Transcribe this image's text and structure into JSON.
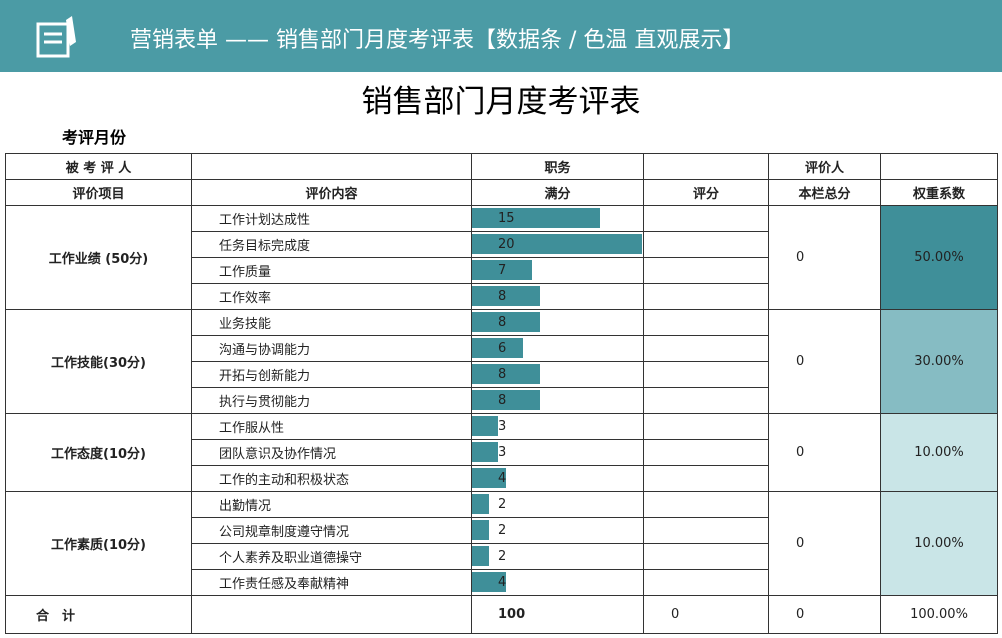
{
  "header": {
    "title": "营销表单 —— 销售部门月度考评表【数据条 / 色温 直观展示】"
  },
  "sheet": {
    "title": "销售部门月度考评表",
    "period_label": "考评月份"
  },
  "table": {
    "info_row": [
      "被 考 评 人",
      "职务",
      "评价人"
    ],
    "columns": [
      "评价项目",
      "评价内容",
      "满分",
      "评分",
      "本栏总分",
      "权重系数"
    ],
    "bar_color": "#3f8f99",
    "groups": [
      {
        "name": "工作业绩 (50分)",
        "total": 0,
        "weight": "50.00%",
        "color": "#3f8f99",
        "items": [
          {
            "content": "工作计划达成性",
            "full_score": 15
          },
          {
            "content": "任务目标完成度",
            "full_score": 20
          },
          {
            "content": "工作质量",
            "full_score": 7
          },
          {
            "content": "工作效率",
            "full_score": 8
          }
        ]
      },
      {
        "name": "工作技能(30分)",
        "total": 0,
        "weight": "30.00%",
        "color": "#86bcc3",
        "items": [
          {
            "content": "业务技能",
            "full_score": 8
          },
          {
            "content": "沟通与协调能力",
            "full_score": 6
          },
          {
            "content": "开拓与创新能力",
            "full_score": 8
          },
          {
            "content": "执行与贯彻能力",
            "full_score": 8
          }
        ]
      },
      {
        "name": "工作态度(10分)",
        "total": 0,
        "weight": "10.00%",
        "color": "#c9e5e7",
        "items": [
          {
            "content": "工作服从性",
            "full_score": 3
          },
          {
            "content": "团队意识及协作情况",
            "full_score": 3
          },
          {
            "content": "工作的主动和积极状态",
            "full_score": 4
          }
        ]
      },
      {
        "name": "工作素质(10分)",
        "total": 0,
        "weight": "10.00%",
        "color": "#c9e5e7",
        "items": [
          {
            "content": "出勤情况",
            "full_score": 2
          },
          {
            "content": "公司规章制度遵守情况",
            "full_score": 2
          },
          {
            "content": "个人素养及职业道德操守",
            "full_score": 2
          },
          {
            "content": "工作责任感及奉献精神",
            "full_score": 4
          }
        ]
      }
    ],
    "total_row": {
      "label": "合　计",
      "full_score": 100,
      "score": 0,
      "total": 0,
      "weight": "100.00%"
    }
  }
}
